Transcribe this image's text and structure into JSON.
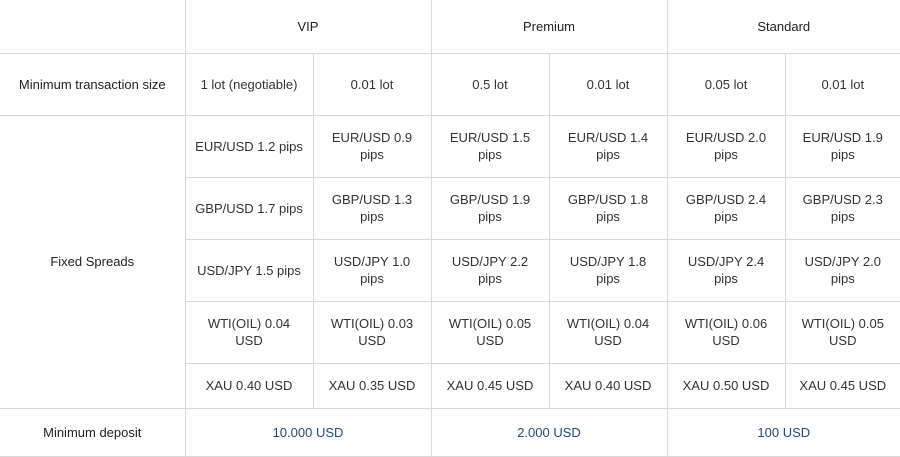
{
  "table": {
    "header": {
      "corner": "",
      "plans": [
        "VIP",
        "Premium",
        "Standard"
      ]
    },
    "min_transaction": {
      "label": "Minimum transaction size",
      "values": [
        "1 lot (negotiable)",
        "0.01 lot",
        "0.5 lot",
        "0.01 lot",
        "0.05 lot",
        "0.01 lot"
      ]
    },
    "fixed_spreads": {
      "label": "Fixed Spreads",
      "rows": [
        [
          "EUR/USD 1.2 pips",
          "EUR/USD 0.9 pips",
          "EUR/USD 1.5 pips",
          "EUR/USD 1.4 pips",
          "EUR/USD 2.0 pips",
          "EUR/USD 1.9 pips"
        ],
        [
          "GBP/USD 1.7 pips",
          "GBP/USD 1.3 pips",
          "GBP/USD 1.9 pips",
          "GBP/USD 1.8 pips",
          "GBP/USD 2.4 pips",
          "GBP/USD 2.3 pips"
        ],
        [
          "USD/JPY 1.5 pips",
          "USD/JPY 1.0 pips",
          "USD/JPY 2.2 pips",
          "USD/JPY 1.8 pips",
          "USD/JPY 2.4 pips",
          "USD/JPY 2.0 pips"
        ],
        [
          "WTI(OIL) 0.04 USD",
          "WTI(OIL) 0.03 USD",
          "WTI(OIL) 0.05 USD",
          "WTI(OIL) 0.04 USD",
          "WTI(OIL) 0.06 USD",
          "WTI(OIL) 0.05 USD"
        ],
        [
          "XAU 0.40 USD",
          "XAU 0.35 USD",
          "XAU 0.45 USD",
          "XAU 0.40 USD",
          "XAU 0.50 USD",
          "XAU 0.45 USD"
        ]
      ]
    },
    "min_deposit": {
      "label": "Minimum deposit",
      "values": [
        "10.000 USD",
        "2.000 USD",
        "100 USD"
      ]
    },
    "colors": {
      "border": "#d9d9d9",
      "deposit_text": "#1f4e79",
      "label_text": "#222222",
      "cell_text": "#333333"
    }
  }
}
